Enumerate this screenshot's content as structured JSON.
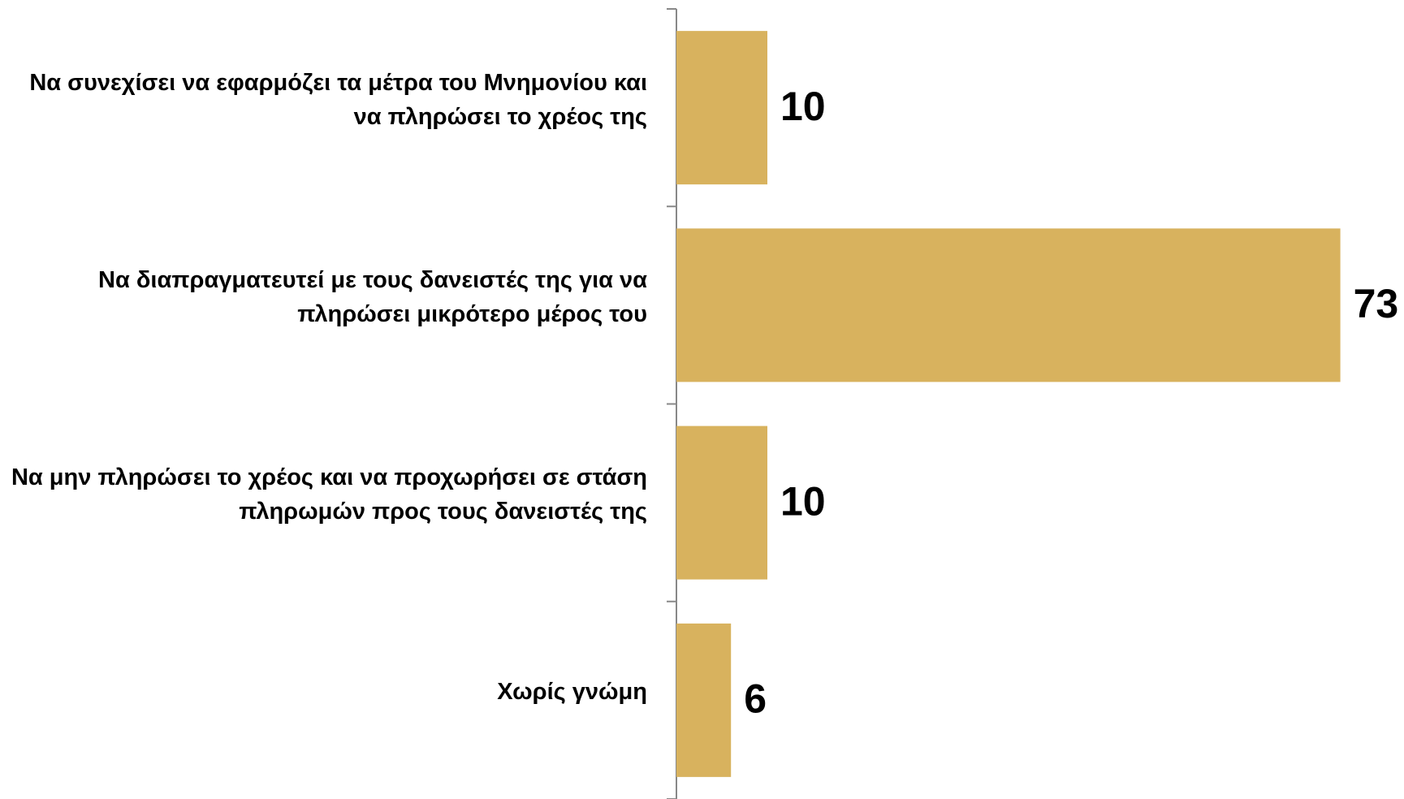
{
  "chart_data": {
    "type": "bar",
    "orientation": "horizontal",
    "categories": [
      "Να συνεχίσει να εφαρμόζει τα μέτρα του Μνημονίου και να πληρώσει το χρέος της",
      "Να διαπραγματευτεί με τους δανειστές της για να πληρώσει μικρότερο μέρος του",
      "Να μην πληρώσει το χρέος και να προχωρήσει σε στάση πληρωμών προς τους δανειστές της",
      "Χωρίς γνώμη"
    ],
    "values": [
      10,
      73,
      10,
      6
    ],
    "color": "#d8b25e"
  }
}
